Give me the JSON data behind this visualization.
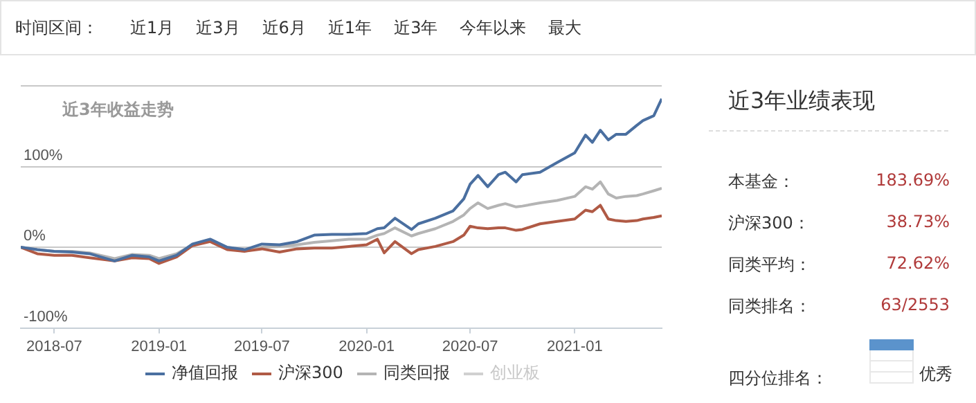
{
  "chart_data": [
    {
      "type": "other",
      "title": "时间区间：",
      "annotations": [
        "近1月",
        "近3月",
        "近6月",
        "近1年",
        "近3年",
        "今年以来",
        "最大"
      ]
    },
    {
      "type": "line",
      "title": "近3年收益走势",
      "x": [
        "2018-05-03",
        "2018-06-01",
        "2018-07-01",
        "2018-08-01",
        "2018-09-01",
        "2018-10-15",
        "2018-11-15",
        "2018-12-15",
        "2019-01-01",
        "2019-02-01",
        "2019-03-01",
        "2019-04-01",
        "2019-05-01",
        "2019-06-01",
        "2019-07-01",
        "2019-08-01",
        "2019-09-01",
        "2019-10-01",
        "2019-11-01",
        "2019-12-01",
        "2020-01-01",
        "2020-01-20",
        "2020-02-01",
        "2020-02-20",
        "2020-03-20",
        "2020-04-01",
        "2020-05-01",
        "2020-06-01",
        "2020-06-20",
        "2020-07-01",
        "2020-07-15",
        "2020-08-01",
        "2020-08-20",
        "2020-09-01",
        "2020-09-20",
        "2020-10-01",
        "2020-11-01",
        "2020-12-01",
        "2021-01-01",
        "2021-01-20",
        "2021-02-01",
        "2021-02-15",
        "2021-03-01",
        "2021-03-15",
        "2021-04-01",
        "2021-04-20",
        "2021-05-01",
        "2021-05-20",
        "2021-06-03"
      ],
      "series": [
        {
          "name": "净值回报",
          "color": "#4a6fa0",
          "values": [
            0,
            -3,
            -5,
            -6,
            -8,
            -17,
            -10,
            -12,
            -17,
            -10,
            4,
            10,
            0,
            -3,
            4,
            3,
            7,
            15,
            16,
            16,
            17,
            23,
            24,
            36,
            22,
            29,
            36,
            45,
            60,
            78,
            89,
            75,
            90,
            93,
            81,
            90,
            93,
            105,
            117,
            139,
            130,
            145,
            133,
            140,
            140,
            151,
            157,
            163,
            184
          ]
        },
        {
          "name": "沪深300",
          "color": "#b05a45",
          "values": [
            0,
            -8,
            -10,
            -10,
            -13,
            -17,
            -13,
            -14,
            -20,
            -12,
            2,
            7,
            -3,
            -5,
            -2,
            -6,
            -2,
            -1,
            -1,
            1,
            3,
            10,
            -7,
            7,
            -8,
            -3,
            1,
            7,
            15,
            26,
            24,
            23,
            24,
            24,
            21,
            22,
            29,
            32,
            35,
            46,
            44,
            52,
            35,
            33,
            32,
            33,
            35,
            37,
            39
          ]
        },
        {
          "name": "同类回报",
          "color": "#b4b4b4",
          "values": [
            0,
            -3,
            -5,
            -5,
            -7,
            -14,
            -9,
            -10,
            -14,
            -8,
            3,
            8,
            -2,
            -5,
            0,
            1,
            3,
            6,
            8,
            10,
            10,
            15,
            17,
            24,
            14,
            17,
            23,
            32,
            40,
            48,
            55,
            48,
            52,
            54,
            50,
            51,
            55,
            58,
            63,
            75,
            72,
            81,
            66,
            61,
            63,
            64,
            66,
            70,
            73
          ]
        },
        {
          "name": "创业板",
          "color": "#d0d0d0",
          "values": [
            null,
            null,
            null,
            null,
            null,
            null,
            null,
            null,
            null,
            null,
            null,
            null,
            null,
            null,
            null,
            null,
            null,
            null,
            null,
            null,
            null,
            null,
            null,
            null,
            null,
            null,
            null,
            null,
            null,
            null,
            null,
            null,
            null,
            null,
            null,
            null,
            null,
            null,
            null,
            null,
            null,
            null,
            null,
            null,
            null,
            null,
            null,
            null,
            null
          ]
        }
      ],
      "xlim": [
        "2018-05-03",
        "2021-06-03"
      ],
      "xticks": [
        "2018-07",
        "2019-01",
        "2019-07",
        "2020-01",
        "2020-07",
        "2021-01"
      ],
      "ylim": [
        -100,
        200
      ],
      "yticks": [
        {
          "value": -100,
          "label": "-100%"
        },
        {
          "value": 0,
          "label": "0%"
        },
        {
          "value": 100,
          "label": "100%"
        },
        {
          "value": 200,
          "label": null
        }
      ],
      "grid": "y",
      "legend": "bottom",
      "marker": "none",
      "line_style": "solid"
    },
    {
      "type": "other",
      "title": "近3年业绩表现",
      "annotations": [
        "本基金：",
        "183.69%",
        "沪深300：",
        "38.73%",
        "同类平均：",
        "72.62%",
        "同类排名：",
        "63/2553",
        "四分位排名：",
        "优秀"
      ]
    }
  ]
}
